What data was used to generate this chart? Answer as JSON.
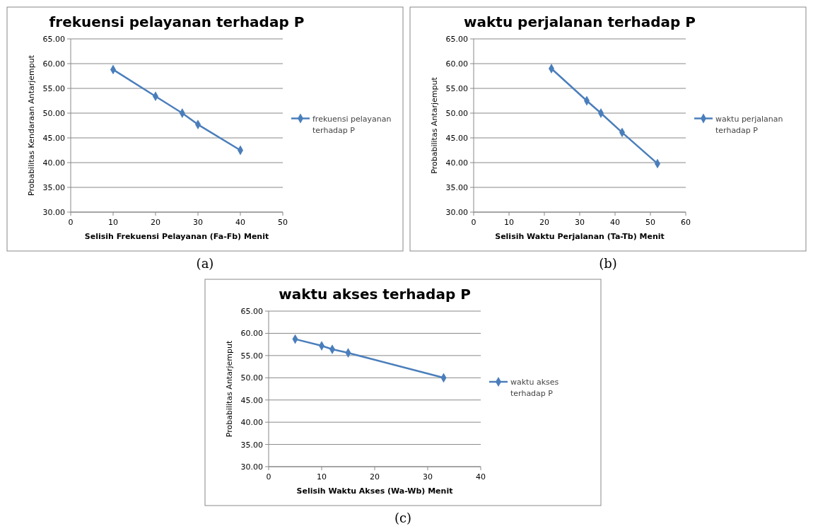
{
  "chart_data": [
    {
      "type": "line",
      "title": "frekuensi pelayanan terhadap P",
      "xlabel": "Selisih Frekuensi Pelayanan (Fa-Fb)  Menit",
      "ylabel": "Probabilitas Kendaraan Antarjemput",
      "x": [
        10,
        20,
        26.3,
        30,
        40
      ],
      "series": [
        {
          "name": "frekuensi pelayanan terhadap P",
          "color": "#4a7ebb",
          "values": [
            58.8,
            53.4,
            50.0,
            47.7,
            42.5
          ]
        }
      ],
      "xlim": [
        0,
        50
      ],
      "xticks": [
        0,
        10,
        20,
        30,
        40,
        50
      ],
      "ylim": [
        30,
        65
      ],
      "yticks": [
        {
          "value": 30,
          "label": "30.00"
        },
        {
          "value": 35,
          "label": "35.00"
        },
        {
          "value": 40,
          "label": "40.00"
        },
        {
          "value": 45,
          "label": "45.00"
        },
        {
          "value": 50,
          "label": "50.00"
        },
        {
          "value": 55,
          "label": "55.00"
        },
        {
          "value": 60,
          "label": "60.00"
        },
        {
          "value": 65,
          "label": "65.00"
        }
      ],
      "grid": "y",
      "legend": "right",
      "marker": "diamond",
      "annotations": [
        "(a)"
      ]
    },
    {
      "type": "line",
      "title": "waktu perjalanan terhadap P",
      "xlabel": "Selisih Waktu Perjalanan (Ta-Tb)  Menit",
      "ylabel": "Probabilitas Antarjemput",
      "x": [
        22,
        32,
        36,
        42,
        52
      ],
      "series": [
        {
          "name": "waktu perjalanan terhadap P",
          "color": "#4a7ebb",
          "values": [
            59.0,
            52.5,
            50.0,
            46.1,
            39.8
          ]
        }
      ],
      "xlim": [
        0,
        60
      ],
      "xticks": [
        0,
        10,
        20,
        30,
        40,
        50,
        60
      ],
      "ylim": [
        30,
        65
      ],
      "yticks": [
        {
          "value": 30,
          "label": "30.00"
        },
        {
          "value": 35,
          "label": "35.00"
        },
        {
          "value": 40,
          "label": "40.00"
        },
        {
          "value": 45,
          "label": "45.00"
        },
        {
          "value": 50,
          "label": "50.00"
        },
        {
          "value": 55,
          "label": "55.00"
        },
        {
          "value": 60,
          "label": "60.00"
        },
        {
          "value": 65,
          "label": "65.00"
        }
      ],
      "grid": "y",
      "legend": "right",
      "marker": "diamond",
      "annotations": [
        "(b)"
      ]
    },
    {
      "type": "line",
      "title": "waktu akses terhadap P",
      "xlabel": "Selisih Waktu Akses (Wa-Wb)  Menit",
      "ylabel": "Probabilitas Antarjemput",
      "x": [
        5,
        10,
        12,
        15,
        33
      ],
      "series": [
        {
          "name": "waktu akses terhadap P",
          "color": "#4a7ebb",
          "values": [
            58.7,
            57.2,
            56.4,
            55.6,
            50.0
          ]
        }
      ],
      "xlim": [
        0,
        40
      ],
      "xticks": [
        0,
        10,
        20,
        30,
        40
      ],
      "ylim": [
        30,
        65
      ],
      "yticks": [
        {
          "value": 30,
          "label": "30.00"
        },
        {
          "value": 35,
          "label": "35.00"
        },
        {
          "value": 40,
          "label": "40.00"
        },
        {
          "value": 45,
          "label": "45.00"
        },
        {
          "value": 50,
          "label": "50.00"
        },
        {
          "value": 55,
          "label": "55.00"
        },
        {
          "value": 60,
          "label": "60.00"
        },
        {
          "value": 65,
          "label": "65.00"
        }
      ],
      "grid": "y",
      "legend": "right",
      "marker": "diamond",
      "annotations": [
        "(c)"
      ]
    }
  ]
}
